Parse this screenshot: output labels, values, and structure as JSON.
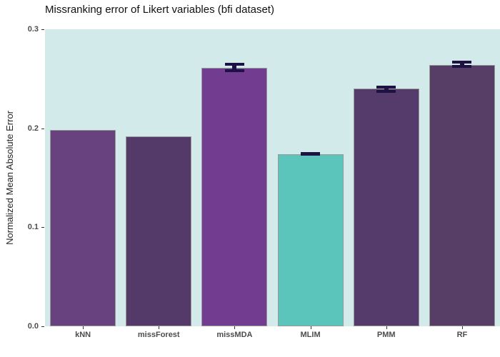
{
  "chart_data": {
    "type": "bar",
    "title": "Missranking error of Likert variables (bfi dataset)",
    "xlabel": "",
    "ylabel": "Normalized Mean Absolute Error",
    "categories": [
      "kNN",
      "missForest",
      "missMDA",
      "MLIM",
      "PMM",
      "RF"
    ],
    "values": [
      0.198,
      0.192,
      0.261,
      0.174,
      0.24,
      0.264
    ],
    "errors": [
      null,
      null,
      {
        "low": 0.257,
        "high": 0.266
      },
      {
        "low": 0.172,
        "high": 0.176
      },
      {
        "low": 0.236,
        "high": 0.243
      },
      {
        "low": 0.261,
        "high": 0.268
      }
    ],
    "ylim": [
      0,
      0.3
    ],
    "yticks": [
      0.0,
      0.1,
      0.2,
      0.3
    ],
    "ytick_labels": [
      "0.0",
      "0.1",
      "0.2",
      "0.3"
    ],
    "grid": false,
    "legend": "none",
    "bar_colors": [
      "#68417f",
      "#533a68",
      "#723c90",
      "#5bc5bc",
      "#553a6c",
      "#573e67"
    ],
    "error_color": "#1e1245",
    "bar_border_color": "#999999",
    "panel_bg": "#d3eaea",
    "page_bg": "#ffffff",
    "axis_text_color": "#4d4d4d"
  }
}
